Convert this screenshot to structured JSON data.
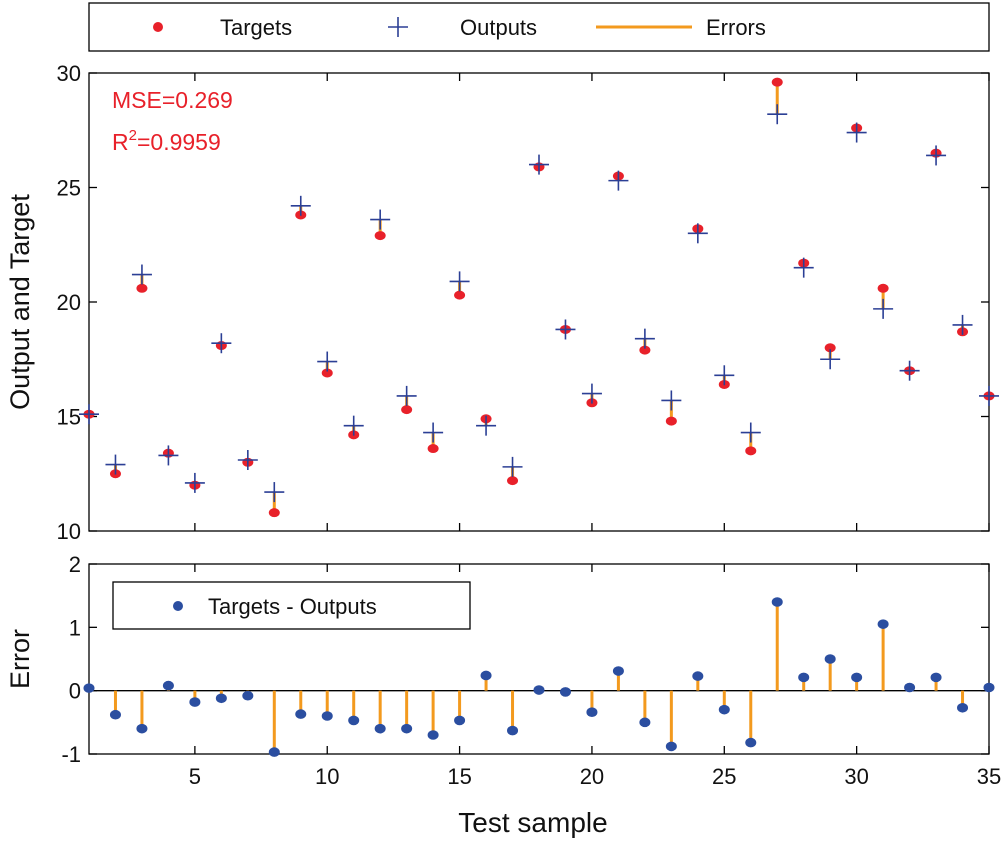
{
  "colors": {
    "target": "#e8212a",
    "output": "#2b3f95",
    "error": "#f39a1e",
    "diff": "#2b4ea0",
    "annotation": "#e8212a",
    "axis": "#000000"
  },
  "legend_top": {
    "targets": "Targets",
    "outputs": "Outputs",
    "errors": "Errors"
  },
  "legend_bottom": {
    "diff": "Targets - Outputs"
  },
  "annotation": {
    "mse": "MSE=0.269",
    "r2_prefix": "R",
    "r2_sup": "2",
    "r2_value": "=0.9959"
  },
  "chart_data": [
    {
      "type": "scatter",
      "title": "",
      "xlabel": "",
      "ylabel": "Output and Target",
      "xlim": [
        1,
        35
      ],
      "ylim": [
        10,
        30
      ],
      "yticks": [
        10,
        15,
        20,
        25,
        30
      ],
      "series": [
        {
          "name": "Targets",
          "x": [
            1,
            2,
            3,
            4,
            5,
            6,
            7,
            8,
            9,
            10,
            11,
            12,
            13,
            14,
            15,
            16,
            17,
            18,
            19,
            20,
            21,
            22,
            23,
            24,
            25,
            26,
            27,
            28,
            29,
            30,
            31,
            32,
            33,
            34,
            35
          ],
          "values": [
            15.1,
            12.5,
            20.6,
            13.4,
            12.0,
            18.1,
            13.0,
            10.8,
            23.8,
            16.9,
            14.2,
            22.9,
            15.3,
            13.6,
            20.3,
            14.9,
            12.2,
            25.9,
            18.8,
            15.6,
            25.5,
            17.9,
            14.8,
            23.2,
            16.4,
            13.5,
            29.6,
            21.7,
            18.0,
            27.6,
            20.6,
            17.0,
            26.5,
            18.7,
            15.9
          ]
        },
        {
          "name": "Outputs",
          "x": [
            1,
            2,
            3,
            4,
            5,
            6,
            7,
            8,
            9,
            10,
            11,
            12,
            13,
            14,
            15,
            16,
            17,
            18,
            19,
            20,
            21,
            22,
            23,
            24,
            25,
            26,
            27,
            28,
            29,
            30,
            31,
            32,
            33,
            34,
            35
          ],
          "values": [
            15.1,
            12.9,
            21.2,
            13.3,
            12.1,
            18.2,
            13.1,
            11.7,
            24.2,
            17.4,
            14.6,
            23.6,
            15.9,
            14.3,
            20.9,
            14.6,
            12.8,
            26.0,
            18.8,
            16.0,
            25.3,
            18.4,
            15.7,
            23.0,
            16.8,
            14.3,
            28.2,
            21.5,
            17.5,
            27.4,
            19.7,
            17.0,
            26.4,
            19.0,
            15.9
          ]
        }
      ],
      "legend": [
        "Targets",
        "Outputs",
        "Errors"
      ],
      "grid": false
    },
    {
      "type": "scatter",
      "title": "",
      "xlabel": "Test sample",
      "ylabel": "Error",
      "xlim": [
        1,
        35
      ],
      "ylim": [
        -1,
        2
      ],
      "xticks": [
        5,
        10,
        15,
        20,
        25,
        30,
        35
      ],
      "yticks": [
        -1,
        0,
        1,
        2
      ],
      "series": [
        {
          "name": "Targets - Outputs",
          "x": [
            1,
            2,
            3,
            4,
            5,
            6,
            7,
            8,
            9,
            10,
            11,
            12,
            13,
            14,
            15,
            16,
            17,
            18,
            19,
            20,
            21,
            22,
            23,
            24,
            25,
            26,
            27,
            28,
            29,
            30,
            31,
            32,
            33,
            34,
            35
          ],
          "values": [
            0.04,
            -0.38,
            -0.6,
            0.08,
            -0.18,
            -0.12,
            -0.08,
            -0.97,
            -0.37,
            -0.4,
            -0.47,
            -0.6,
            -0.6,
            -0.7,
            -0.47,
            0.24,
            -0.63,
            0.01,
            -0.02,
            -0.34,
            0.31,
            -0.5,
            -0.88,
            0.23,
            -0.3,
            -0.82,
            1.4,
            0.21,
            0.5,
            0.21,
            1.05,
            0.05,
            0.21,
            -0.27,
            0.05
          ]
        }
      ],
      "legend": [
        "Targets - Outputs"
      ],
      "grid": false
    }
  ]
}
